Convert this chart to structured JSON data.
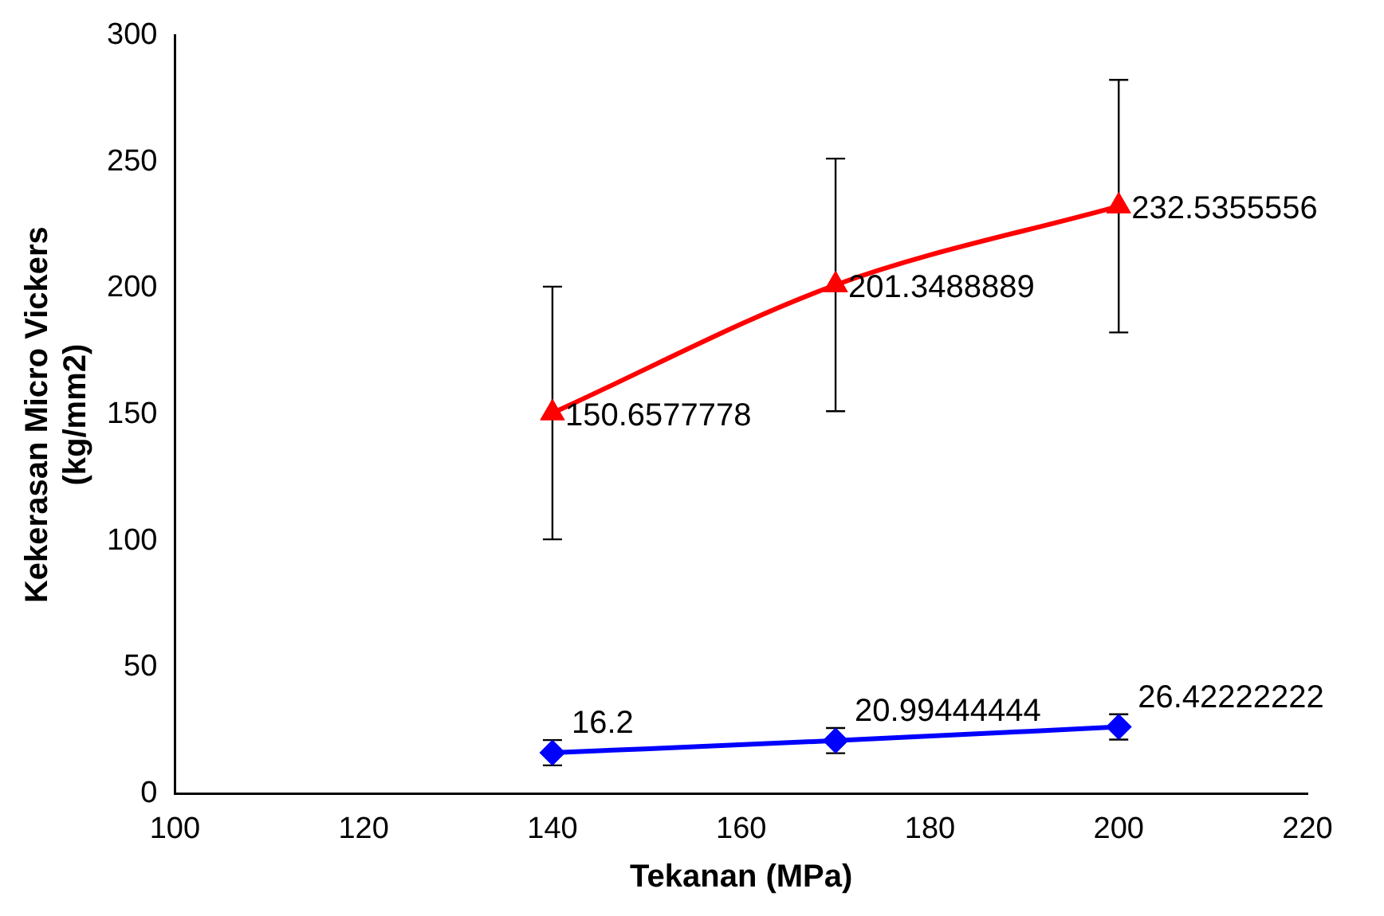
{
  "chart_data": {
    "type": "line",
    "xlabel": "Tekanan (MPa)",
    "ylabel": "Kekerasan Micro Vickers\n(kg/mm2)",
    "x": [
      140,
      170,
      200
    ],
    "series": [
      {
        "color": "#ff0000",
        "values": [
          150.6577778,
          201.3488889,
          232.5355556
        ],
        "errors": [
          50,
          50,
          50
        ],
        "marker": "triangle"
      },
      {
        "color": "#0000ff",
        "values": [
          16.2,
          20.99444444,
          26.42222222
        ],
        "errors": [
          5,
          5,
          5
        ],
        "marker": "diamond"
      }
    ],
    "xlim": [
      100,
      220
    ],
    "xticks": [
      100,
      120,
      140,
      160,
      180,
      200,
      220
    ],
    "ylim": [
      0,
      300
    ],
    "yticks": [
      0,
      50,
      100,
      150,
      200,
      250,
      300
    ],
    "grid": false,
    "legend": false,
    "data_labels": true
  }
}
